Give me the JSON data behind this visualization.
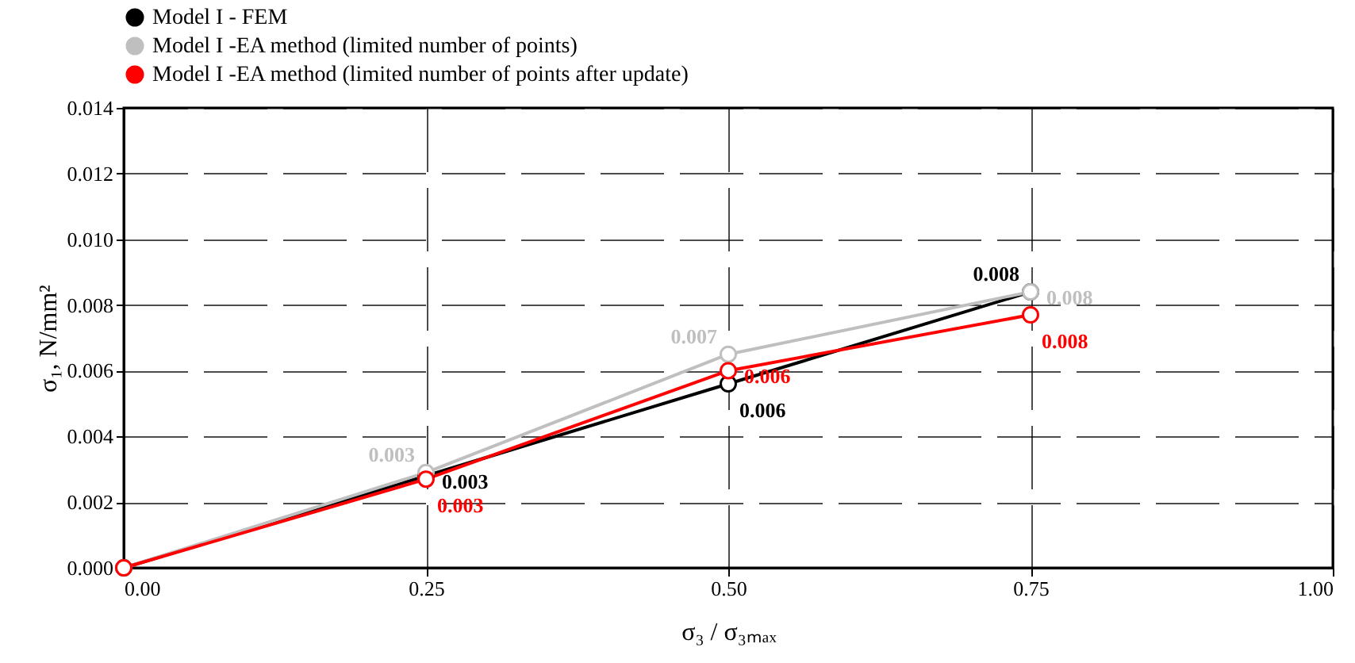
{
  "chart_data": {
    "type": "line",
    "xlabel": "σ₃ / σ₃ₘₐₓ",
    "ylabel": "σ₁, N/mm²",
    "x": [
      0,
      0.25,
      0.5,
      0.75
    ],
    "xlim": [
      0,
      1
    ],
    "xticks": [
      {
        "value": 0,
        "label": "0.00"
      },
      0.25,
      {
        "value": 0.5,
        "label": "0.50"
      },
      0.75,
      {
        "value": 1,
        "label": "1.00"
      }
    ],
    "ylim": [
      0,
      0.014
    ],
    "yticks": [
      {
        "value": 0,
        "label": "0.000"
      },
      0.002,
      0.004,
      0.006,
      0.008,
      {
        "value": 0.01,
        "label": "0.010"
      },
      0.012,
      0.014
    ],
    "grid": true,
    "marker": "circle",
    "line_style": "solid",
    "legend": "top left",
    "series": [
      {
        "name": "Model I - FEM",
        "color": "#000000",
        "values": [
          0,
          0.0028,
          0.0056,
          0.0084
        ],
        "value_labels": [
          null,
          "0.003",
          "0.006",
          "0.008"
        ]
      },
      {
        "name": "Model I -EA method (limited number of points)",
        "color": "#bfbfbf",
        "values": [
          0,
          0.0029,
          0.0065,
          0.0084
        ],
        "value_labels": [
          null,
          "0.003",
          "0.007",
          "0.008"
        ]
      },
      {
        "name": "Model I -EA method (limited number of points after update)",
        "color": "#ff0000",
        "values": [
          0,
          0.0027,
          0.006,
          0.0077
        ],
        "value_labels": [
          null,
          "0.003",
          "0.006",
          "0.008"
        ]
      }
    ]
  }
}
